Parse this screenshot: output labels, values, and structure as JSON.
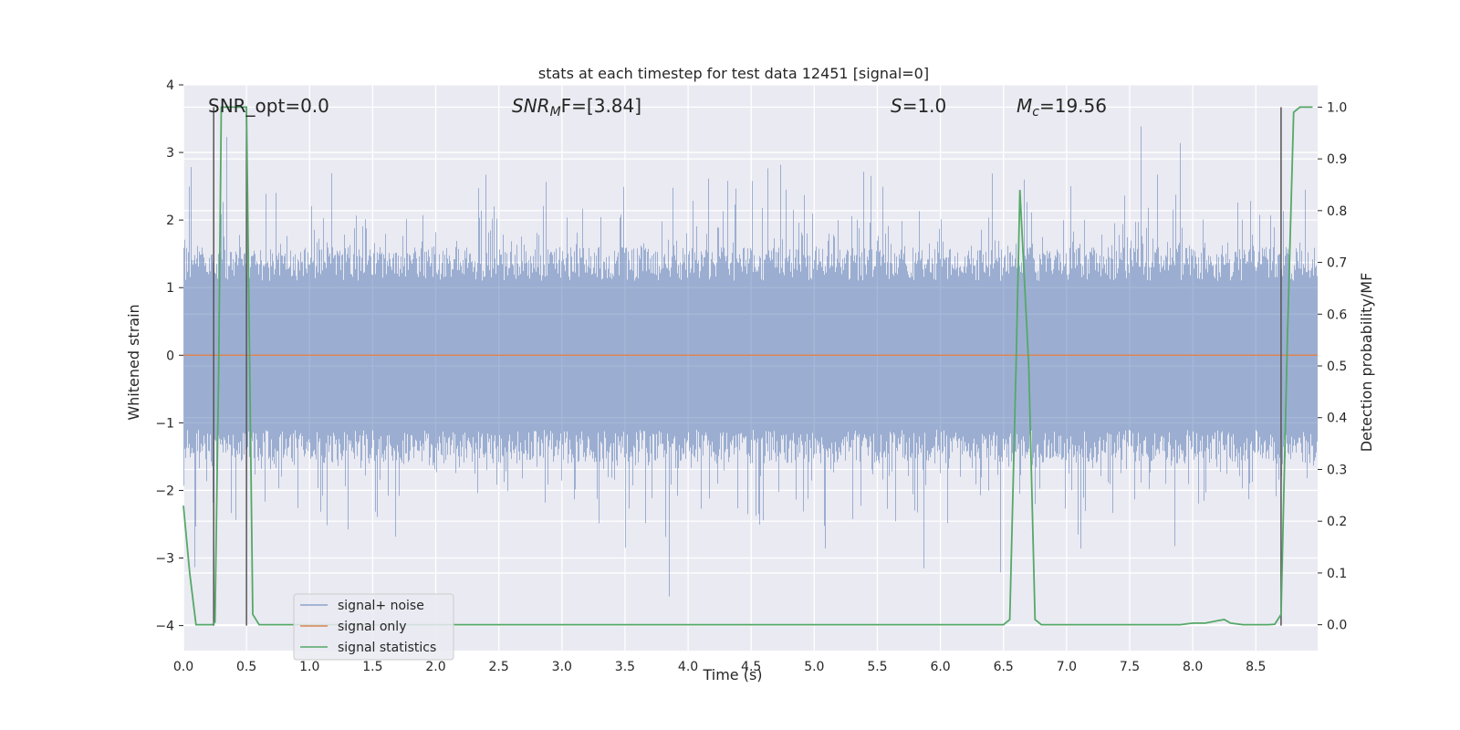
{
  "chart_data": {
    "type": "line",
    "title": "stats at each timestep for test data 12451 [signal=0]",
    "xlabel": "Time (s)",
    "ylabel": "Whitened strain",
    "y2label": "Detection probability/MF",
    "xlim": [
      0.0,
      8.99
    ],
    "ylim": [
      -4.37,
      4.0
    ],
    "y2lim": [
      -0.05,
      1.043
    ],
    "x_ticks": [
      "0.0",
      "0.5",
      "1.0",
      "1.5",
      "2.0",
      "2.5",
      "3.0",
      "3.5",
      "4.0",
      "4.5",
      "5.0",
      "5.5",
      "6.0",
      "6.5",
      "7.0",
      "7.5",
      "8.0",
      "8.5"
    ],
    "y_ticks": [
      "4",
      "3",
      "2",
      "1",
      "0",
      "−1",
      "−2",
      "−3",
      "−4"
    ],
    "y2_ticks": [
      "1.0",
      "0.9",
      "0.8",
      "0.7",
      "0.6",
      "0.5",
      "0.4",
      "0.3",
      "0.2",
      "0.1",
      "0.0"
    ],
    "annotations": {
      "snr_opt": "SNR_opt=0.0",
      "snr_mf_sym": "SNR",
      "snr_mf_sub": "M",
      "snr_mf_rest": "F=[3.84]",
      "s_sym": "S",
      "s_val": "=1.0",
      "mc_sym": "M",
      "mc_sub": "c",
      "mc_val": "=19.56"
    },
    "legend": [
      "signal+ noise",
      "signal only",
      "signal statistics"
    ],
    "colors": {
      "noise": "#4c72b0",
      "signal": "#dd8452",
      "stats": "#55a868",
      "vline": "#555555",
      "background": "#eaeaf2",
      "grid": "#ffffff"
    },
    "series": [
      {
        "name": "signal+ noise",
        "description_kind": "whitened noise, std ~1, spanning the full time axis",
        "x_range": [
          0.0,
          8.99
        ],
        "std": 0.95
      },
      {
        "name": "signal only",
        "x": [
          0.0,
          8.99
        ],
        "y": [
          0.0,
          0.0
        ]
      },
      {
        "name": "signal statistics",
        "x": [
          0.0,
          0.05,
          0.1,
          0.17,
          0.23,
          0.25,
          0.28,
          0.3,
          0.35,
          0.45,
          0.5,
          0.55,
          0.6,
          0.7,
          1.0,
          6.0,
          6.5,
          6.55,
          6.6,
          6.63,
          6.7,
          6.75,
          6.8,
          7.5,
          7.9,
          8.0,
          8.1,
          8.2,
          8.25,
          8.3,
          8.4,
          8.5,
          8.6,
          8.65,
          8.7,
          8.75,
          8.8,
          8.85,
          8.9,
          8.95
        ],
        "y": [
          0.23,
          0.1,
          0.0,
          0.0,
          0.0,
          0.005,
          0.5,
          1.0,
          1.0,
          1.0,
          1.0,
          0.02,
          0.0,
          0.0,
          0.0,
          0.0,
          0.0,
          0.01,
          0.5,
          0.84,
          0.5,
          0.01,
          0.0,
          0.0,
          0.0,
          0.003,
          0.003,
          0.008,
          0.01,
          0.003,
          0.0,
          0.0,
          0.0,
          0.001,
          0.02,
          0.55,
          0.99,
          1.0,
          1.0,
          1.0
        ]
      }
    ],
    "vertical_lines_x": [
      0.24,
      0.5,
      8.7
    ]
  }
}
